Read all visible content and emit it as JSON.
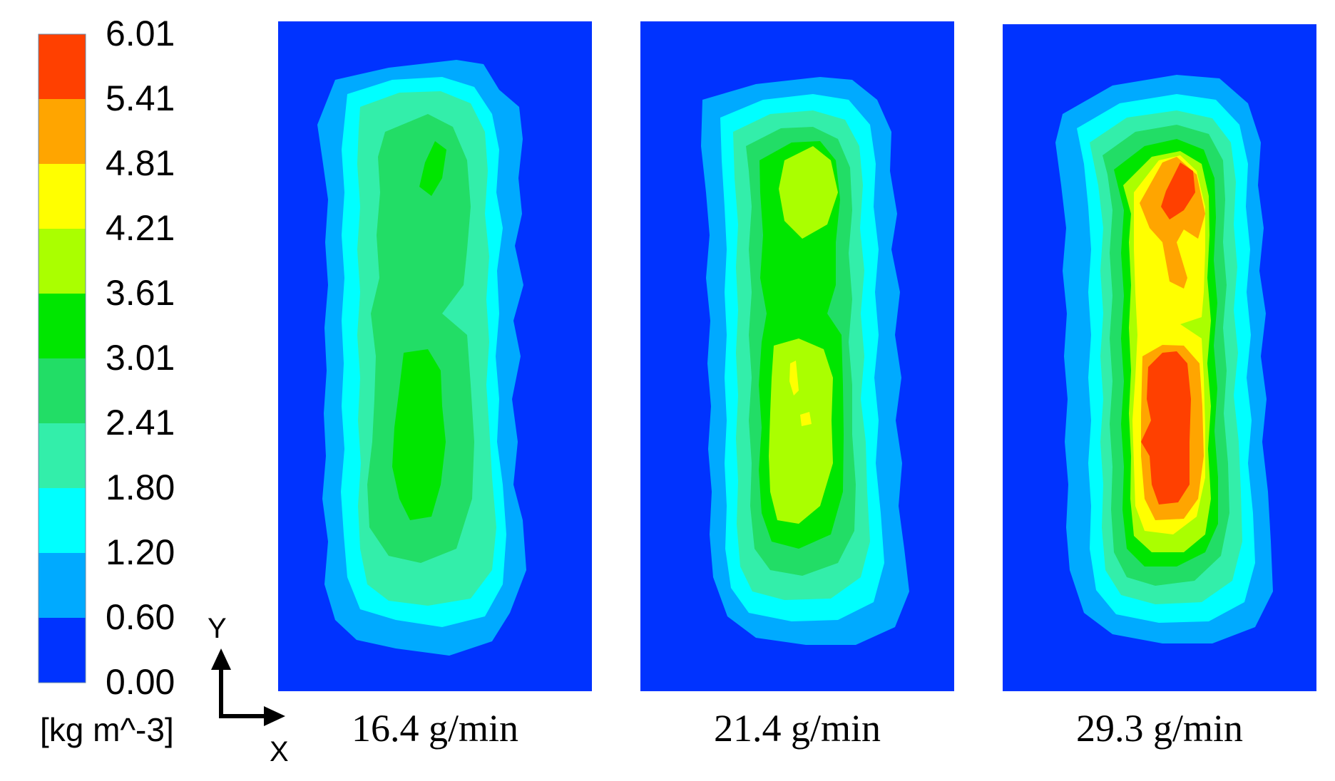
{
  "colorbar": {
    "unit": "[kg m^-3]",
    "tick_labels": [
      "6.01",
      "5.41",
      "4.81",
      "4.21",
      "3.61",
      "3.01",
      "2.41",
      "1.80",
      "1.20",
      "0.60",
      "0.00"
    ],
    "colors_top_to_bottom": [
      "#ff4000",
      "#ffa500",
      "#ffff00",
      "#aaff00",
      "#00e600",
      "#22dd66",
      "#33eeaa",
      "#00ffff",
      "#00aaff",
      "#0033ff"
    ]
  },
  "axes_indicator": {
    "y_label": "Y",
    "x_label": "X"
  },
  "panels": [
    {
      "caption": "16.4 g/min"
    },
    {
      "caption": "21.4 g/min"
    },
    {
      "caption": "29.3 g/min"
    }
  ]
}
